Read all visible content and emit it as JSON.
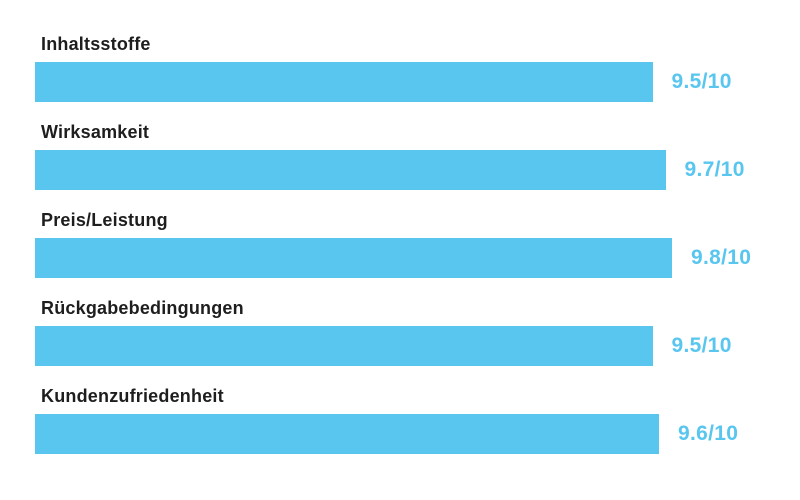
{
  "chart_data": {
    "type": "bar",
    "orientation": "horizontal",
    "title": "",
    "categories": [
      "Inhaltsstoffe",
      "Wirksamkeit",
      "Preis/Leistung",
      "Rückgabebedingungen",
      "Kundenzufriedenheit"
    ],
    "values": [
      9.5,
      9.7,
      9.8,
      9.5,
      9.6
    ],
    "value_labels": [
      "9.5/10",
      "9.7/10",
      "9.8/10",
      "9.5/10",
      "9.6/10"
    ],
    "max_value": 10,
    "grid": "off",
    "legend": "none",
    "bar_color": "#58c6ef",
    "value_text_color": "#58c6ef",
    "category_text_color": "#1e1e1e",
    "background_color": "#ffffff"
  },
  "rows": [
    {
      "label": "Inhaltsstoffe",
      "value": 9.5,
      "display": "9.5/10"
    },
    {
      "label": "Wirksamkeit",
      "value": 9.7,
      "display": "9.7/10"
    },
    {
      "label": "Preis/Leistung",
      "value": 9.8,
      "display": "9.8/10"
    },
    {
      "label": "Rückgabebedingungen",
      "value": 9.5,
      "display": "9.5/10"
    },
    {
      "label": "Kundenzufriedenheit",
      "value": 9.6,
      "display": "9.6/10"
    }
  ]
}
